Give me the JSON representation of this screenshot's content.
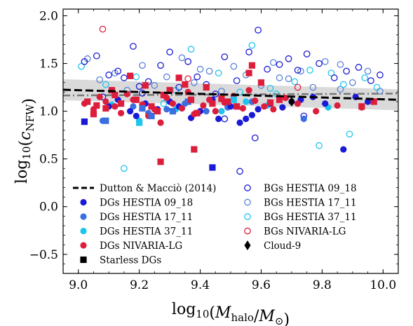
{
  "chart_data": {
    "type": "scatter",
    "title": "",
    "xlabel": "log10(Mhalo/M⊙)",
    "ylabel": "log10(cNFW)",
    "xlim": [
      8.95,
      10.05
    ],
    "ylim": [
      -0.7,
      2.07
    ],
    "x_ticks": [
      9.0,
      9.2,
      9.4,
      9.6,
      9.8,
      10.0
    ],
    "x_tick_labels": [
      "9.0",
      "9.2",
      "9.4",
      "9.6",
      "9.8",
      "10.0"
    ],
    "y_ticks": [
      -0.5,
      0.0,
      0.5,
      1.0,
      1.5,
      2.0
    ],
    "y_tick_labels": [
      "−0.5",
      "0.0",
      "0.5",
      "1.0",
      "1.5",
      "2.0"
    ],
    "legend_placement": "bottom-left",
    "legend": [
      {
        "label": "Dutton & Macciò (2014)",
        "marker": "dashed-line",
        "color": "#000000"
      },
      {
        "label": "DGs HESTIA 09_18",
        "marker": "filled-circle",
        "color": "#1a1ad6"
      },
      {
        "label": "DGs HESTIA 17_11",
        "marker": "filled-circle",
        "color": "#3b6fe0"
      },
      {
        "label": "DGs HESTIA 37_11",
        "marker": "filled-circle",
        "color": "#1fc4ee"
      },
      {
        "label": "DGs NIVARIA-LG",
        "marker": "filled-circle",
        "color": "#dc1e3c"
      },
      {
        "label": "Starless DGs",
        "marker": "filled-square",
        "color": "#000000"
      },
      {
        "label": "BGs HESTIA 09_18",
        "marker": "open-circle",
        "color": "#1a1ad6"
      },
      {
        "label": "BGs HESTIA 17_11",
        "marker": "open-circle",
        "color": "#5c82d6"
      },
      {
        "label": "BGs HESTIA 37_11",
        "marker": "open-circle",
        "color": "#1fc4ee"
      },
      {
        "label": "BGs NIVARIA-LG",
        "marker": "open-circle",
        "color": "#dc1e3c"
      },
      {
        "label": "Cloud-9",
        "marker": "diamond",
        "color": "#000000"
      }
    ],
    "relation": {
      "name": "Dutton & Macciò (2014)",
      "x": [
        8.95,
        10.05
      ],
      "y": [
        1.225,
        1.12
      ],
      "scatter_band": 0.11,
      "color": "#000000"
    },
    "fit_line": {
      "x": [
        8.95,
        10.05
      ],
      "y": [
        1.165,
        1.185
      ],
      "color": "#777777"
    },
    "colors": {
      "hestia_09_18": "#1a1ad6",
      "hestia_17_11": "#3b6fe0",
      "hestia_17_11_bg": "#5c82d6",
      "hestia_37_11": "#1fc4ee",
      "nivaria": "#dc1e3c",
      "band": "#d3d3d3"
    },
    "series": [
      {
        "key": "dg_09_18",
        "name": "DGs HESTIA 09_18",
        "marker": "filled-circle",
        "color": "#1a1ad6",
        "x": [
          9.1,
          9.13,
          9.17,
          9.19,
          9.22,
          9.26,
          9.3,
          9.33,
          9.37,
          9.4,
          9.44,
          9.46,
          9.5,
          9.53,
          9.55,
          9.57,
          9.59,
          9.63,
          9.67,
          9.7,
          9.73,
          9.77,
          9.81,
          9.87,
          9.91,
          9.95
        ],
        "y": [
          1.05,
          1.12,
          1.0,
          0.95,
          1.08,
          1.02,
          1.1,
          1.05,
          0.93,
          1.0,
          1.12,
          0.92,
          1.05,
          0.88,
          0.92,
          0.96,
          1.02,
          1.08,
          1.04,
          1.1,
          1.12,
          1.15,
          1.08,
          0.6,
          1.15,
          1.1
        ]
      },
      {
        "key": "dg_17_11",
        "name": "DGs HESTIA 17_11",
        "marker": "filled-circle",
        "color": "#3b6fe0",
        "x": [
          9.08,
          9.18,
          9.23,
          9.29,
          9.35,
          9.42,
          9.49,
          9.57,
          9.74
        ],
        "y": [
          0.9,
          1.05,
          0.98,
          1.02,
          1.08,
          1.0,
          1.04,
          1.1,
          0.92
        ]
      },
      {
        "key": "dg_37_11",
        "name": "DGs HESTIA 37_11",
        "marker": "filled-circle",
        "color": "#1fc4ee",
        "x": [
          9.11,
          9.2,
          9.32,
          9.47,
          9.55,
          9.62,
          9.82
        ],
        "y": [
          1.07,
          0.9,
          1.02,
          1.0,
          1.1,
          1.06,
          1.04
        ]
      },
      {
        "key": "dg_nivaria",
        "name": "DGs NIVARIA-LG",
        "marker": "filled-circle",
        "color": "#dc1e3c",
        "x": [
          9.02,
          9.05,
          9.07,
          9.09,
          9.12,
          9.14,
          9.16,
          9.18,
          9.21,
          9.23,
          9.25,
          9.27,
          9.29,
          9.31,
          9.34,
          9.36,
          9.38,
          9.41,
          9.43,
          9.45,
          9.48,
          9.51,
          9.54,
          9.56,
          9.58,
          9.61,
          9.64,
          9.68,
          9.72,
          9.78,
          9.85,
          9.93
        ],
        "y": [
          1.08,
          1.02,
          1.15,
          1.1,
          1.05,
          0.98,
          1.18,
          1.12,
          1.07,
          0.95,
          1.02,
          0.88,
          1.14,
          1.08,
          1.03,
          1.2,
          0.97,
          1.06,
          1.12,
          1.0,
          1.09,
          1.16,
          1.03,
          1.22,
          1.11,
          1.05,
          1.02,
          1.14,
          1.08,
          1.0,
          1.06,
          1.04
        ]
      },
      {
        "key": "starless_09_18",
        "name": "Starless DGs HESTIA 09_18",
        "marker": "filled-square",
        "color": "#1a1ad6",
        "x": [
          9.02,
          9.44
        ],
        "y": [
          0.89,
          0.41
        ]
      },
      {
        "key": "starless_17_11",
        "name": "Starless DGs HESTIA 17_11",
        "marker": "filled-square",
        "color": "#3b6fe0",
        "x": [
          9.09,
          9.21,
          9.24,
          9.36,
          9.31
        ],
        "y": [
          0.9,
          1.03,
          0.95,
          1.1,
          1.0
        ]
      },
      {
        "key": "starless_37_11",
        "name": "Starless DGs HESTIA 37_11",
        "marker": "filled-square",
        "color": "#1fc4ee",
        "x": [
          9.2,
          9.51
        ],
        "y": [
          0.88,
          1.12
        ]
      },
      {
        "key": "starless_nivaria",
        "name": "Starless DGs NIVARIA-LG",
        "marker": "filled-square",
        "color": "#dc1e3c",
        "x": [
          9.03,
          9.06,
          9.09,
          9.11,
          9.14,
          9.17,
          9.19,
          9.22,
          9.24,
          9.26,
          9.28,
          9.3,
          9.33,
          9.35,
          9.37,
          9.39,
          9.42,
          9.44,
          9.47,
          9.49,
          9.52,
          9.57,
          9.6,
          9.63,
          9.66,
          9.27,
          9.05,
          9.38,
          9.56,
          9.12,
          9.93,
          9.97
        ],
        "y": [
          1.1,
          1.06,
          1.03,
          1.22,
          1.08,
          1.37,
          1.12,
          1.27,
          1.05,
          1.0,
          1.17,
          1.22,
          1.35,
          1.28,
          1.12,
          0.98,
          1.25,
          1.08,
          1.13,
          1.1,
          1.05,
          1.48,
          1.3,
          1.09,
          1.12,
          0.47,
          0.97,
          0.6,
          1.4,
          1.17,
          1.05,
          1.1
        ]
      },
      {
        "key": "bg_09_18",
        "name": "BGs HESTIA 09_18",
        "marker": "open-circle",
        "color": "#1a1ad6",
        "x": [
          9.02,
          9.06,
          9.1,
          9.13,
          9.15,
          9.18,
          9.2,
          9.23,
          9.27,
          9.3,
          9.33,
          9.36,
          9.39,
          9.42,
          9.45,
          9.48,
          9.52,
          9.56,
          9.59,
          9.62,
          9.66,
          9.69,
          9.72,
          9.75,
          9.79,
          9.84,
          9.88,
          9.92,
          9.96,
          9.99,
          9.21,
          9.48,
          9.53,
          9.58,
          9.74,
          9.08
        ],
        "y": [
          1.52,
          1.58,
          1.38,
          1.42,
          1.35,
          1.68,
          1.26,
          1.31,
          1.48,
          1.62,
          1.25,
          1.52,
          1.36,
          1.28,
          1.18,
          1.57,
          1.32,
          1.62,
          1.85,
          1.44,
          1.49,
          1.55,
          1.43,
          1.6,
          1.5,
          1.35,
          1.42,
          1.46,
          1.32,
          1.38,
          1.19,
          0.92,
          0.37,
          0.72,
          0.95,
          1.15
        ]
      },
      {
        "key": "bg_17_11",
        "name": "BGs HESTIA 17_11",
        "marker": "open-circle",
        "color": "#5c82d6",
        "x": [
          9.03,
          9.07,
          9.12,
          9.16,
          9.21,
          9.25,
          9.29,
          9.34,
          9.38,
          9.43,
          9.47,
          9.51,
          9.55,
          9.6,
          9.64,
          9.69,
          9.73,
          9.77,
          9.81,
          9.86,
          9.9,
          9.95,
          9.99,
          9.4,
          9.66,
          9.86
        ],
        "y": [
          1.55,
          1.33,
          1.4,
          1.22,
          1.48,
          1.27,
          1.36,
          1.56,
          1.3,
          1.42,
          1.21,
          1.47,
          1.38,
          1.27,
          1.51,
          1.34,
          1.42,
          1.25,
          1.52,
          1.49,
          1.3,
          1.42,
          1.21,
          1.44,
          1.35,
          1.23
        ]
      },
      {
        "key": "bg_37_11",
        "name": "BGs HESTIA 37_11",
        "marker": "open-circle",
        "color": "#1fc4ee",
        "x": [
          9.01,
          9.09,
          9.15,
          9.19,
          9.28,
          9.32,
          9.37,
          9.46,
          9.53,
          9.57,
          9.63,
          9.71,
          9.76,
          9.79,
          9.83,
          9.87,
          9.89,
          9.94,
          9.98,
          9.65
        ],
        "y": [
          1.47,
          1.28,
          0.4,
          1.36,
          1.08,
          1.22,
          1.65,
          1.4,
          1.2,
          1.69,
          1.24,
          1.31,
          1.43,
          0.64,
          1.4,
          1.28,
          0.76,
          1.35,
          1.25,
          1.18
        ]
      },
      {
        "key": "bg_nivaria",
        "name": "BGs NIVARIA-LG",
        "marker": "open-circle",
        "color": "#dc1e3c",
        "x": [
          9.08,
          9.36,
          9.72
        ],
        "y": [
          1.86,
          1.34,
          1.25
        ]
      },
      {
        "key": "cloud_9",
        "name": "Cloud-9",
        "marker": "diamond",
        "color": "#000000",
        "x": [
          9.7
        ],
        "y": [
          1.1
        ]
      }
    ]
  }
}
